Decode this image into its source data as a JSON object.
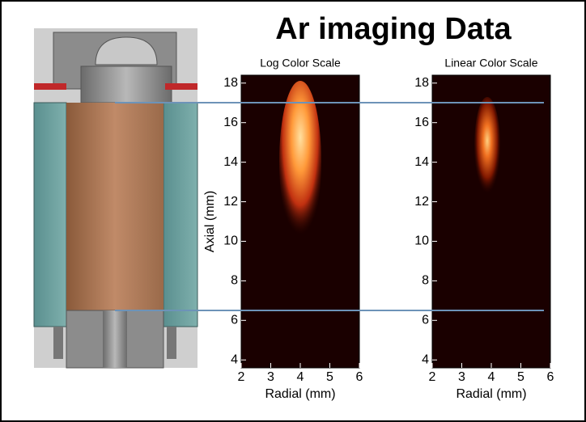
{
  "title": "Ar imaging Data",
  "chart_data": [
    {
      "type": "image",
      "title": "Log Color Scale",
      "xlabel": "Radial (mm)",
      "ylabel": "Axial (mm)",
      "xlim": [
        2,
        6
      ],
      "ylim": [
        3.6,
        18.4
      ],
      "xticks": [
        2,
        3,
        4,
        5,
        6
      ],
      "yticks": [
        4,
        6,
        8,
        10,
        12,
        14,
        16,
        18
      ]
    },
    {
      "type": "image",
      "title": "Linear Color Scale",
      "xlabel": "Radial (mm)",
      "xlim": [
        2,
        6
      ],
      "ylim": [
        3.6,
        18.4
      ],
      "xticks": [
        2,
        3,
        4,
        5,
        6
      ],
      "yticks": [
        4,
        6,
        8,
        10,
        12,
        14,
        16,
        18
      ]
    }
  ]
}
